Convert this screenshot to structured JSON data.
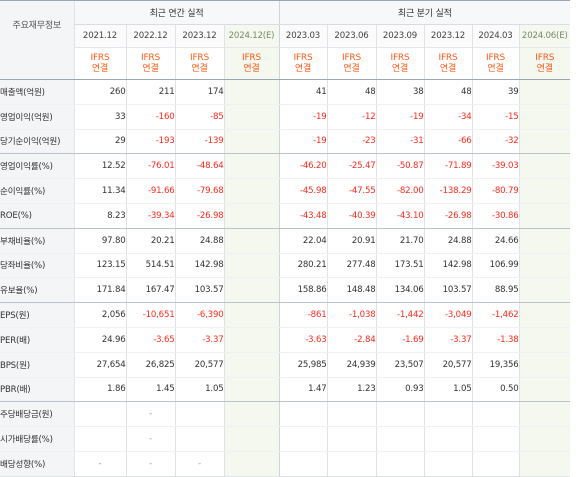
{
  "table": {
    "row_header_label": "주요재무정보",
    "groups": {
      "annual": "최근 연간 실적",
      "quarterly": "최근 분기 실적"
    },
    "annual_periods": [
      "2021.12",
      "2022.12",
      "2023.12",
      "2024.12(E)"
    ],
    "quarterly_periods": [
      "2023.03",
      "2023.06",
      "2023.09",
      "2023.12",
      "2024.03",
      "2024.06(E)"
    ],
    "ifrs_top": "IFRS",
    "ifrs_bottom": "연결",
    "estimate_columns": [
      "2024.12(E)",
      "2024.06(E)"
    ],
    "rows": [
      {
        "label": "매출액(억원)",
        "annual": [
          "260",
          "211",
          "174",
          ""
        ],
        "quarterly": [
          "41",
          "48",
          "38",
          "48",
          "39",
          ""
        ]
      },
      {
        "label": "영업이익(억원)",
        "annual": [
          "33",
          "-160",
          "-85",
          ""
        ],
        "quarterly": [
          "-19",
          "-12",
          "-19",
          "-34",
          "-15",
          ""
        ]
      },
      {
        "label": "당기순이익(억원)",
        "annual": [
          "29",
          "-193",
          "-139",
          ""
        ],
        "quarterly": [
          "-19",
          "-23",
          "-31",
          "-66",
          "-32",
          ""
        ]
      },
      {
        "label": "영업이익률(%)",
        "annual": [
          "12.52",
          "-76.01",
          "-48.64",
          ""
        ],
        "quarterly": [
          "-46.20",
          "-25.47",
          "-50.87",
          "-71.89",
          "-39.03",
          ""
        ]
      },
      {
        "label": "순이익률(%)",
        "annual": [
          "11.34",
          "-91.66",
          "-79.68",
          ""
        ],
        "quarterly": [
          "-45.98",
          "-47.55",
          "-82.00",
          "-138.29",
          "-80.79",
          ""
        ]
      },
      {
        "label": "ROE(%)",
        "annual": [
          "8.23",
          "-39.34",
          "-26.98",
          ""
        ],
        "quarterly": [
          "-43.48",
          "-40.39",
          "-43.10",
          "-26.98",
          "-30.86",
          ""
        ]
      },
      {
        "label": "부채비율(%)",
        "annual": [
          "97.80",
          "20.21",
          "24.88",
          ""
        ],
        "quarterly": [
          "22.04",
          "20.91",
          "21.70",
          "24.88",
          "24.66",
          ""
        ]
      },
      {
        "label": "당좌비율(%)",
        "annual": [
          "123.15",
          "514.51",
          "142.98",
          ""
        ],
        "quarterly": [
          "280.21",
          "277.48",
          "173.51",
          "142.98",
          "106.99",
          ""
        ]
      },
      {
        "label": "유보율(%)",
        "annual": [
          "171.84",
          "167.47",
          "103.57",
          ""
        ],
        "quarterly": [
          "158.86",
          "148.48",
          "134.06",
          "103.57",
          "88.95",
          ""
        ]
      },
      {
        "label": "EPS(원)",
        "annual": [
          "2,056",
          "-10,651",
          "-6,390",
          ""
        ],
        "quarterly": [
          "-861",
          "-1,038",
          "-1,442",
          "-3,049",
          "-1,462",
          ""
        ]
      },
      {
        "label": "PER(배)",
        "annual": [
          "24.96",
          "-3.65",
          "-3.37",
          ""
        ],
        "quarterly": [
          "-3.63",
          "-2.84",
          "-1.69",
          "-3.37",
          "-1.38",
          ""
        ]
      },
      {
        "label": "BPS(원)",
        "annual": [
          "27,654",
          "26,825",
          "20,577",
          ""
        ],
        "quarterly": [
          "25,985",
          "24,939",
          "23,507",
          "20,577",
          "19,356",
          ""
        ]
      },
      {
        "label": "PBR(배)",
        "annual": [
          "1.86",
          "1.45",
          "1.05",
          ""
        ],
        "quarterly": [
          "1.47",
          "1.23",
          "0.93",
          "1.05",
          "0.50",
          ""
        ]
      },
      {
        "label": "주당배당금(원)",
        "annual": [
          "",
          "-",
          "",
          ""
        ],
        "quarterly": [
          "",
          "",
          "",
          "",
          "",
          ""
        ]
      },
      {
        "label": "시가배당률(%)",
        "annual": [
          "",
          "-",
          "",
          ""
        ],
        "quarterly": [
          "",
          "",
          "",
          "",
          "",
          ""
        ]
      },
      {
        "label": "배당성향(%)",
        "annual": [
          "-",
          "-",
          "-",
          ""
        ],
        "quarterly": [
          "",
          "",
          "",
          "",
          "",
          ""
        ]
      }
    ]
  },
  "colors": {
    "negative": "#ff2a1c",
    "ifrs_accent": "#ff5a18",
    "estimate_bg": "#f4f8ee"
  }
}
